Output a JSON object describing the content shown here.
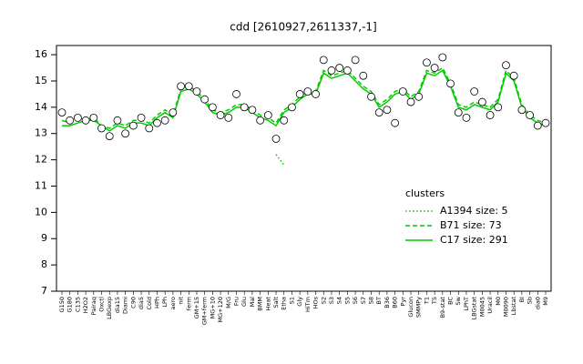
{
  "chart_data": {
    "type": "line",
    "title": "cdd [2610927,2611337,-1]",
    "categories": [
      "G150",
      "G180",
      "C135",
      "H2O2",
      "Pairaq",
      "Oxctl",
      "LBGexp",
      "dia15",
      "Diami",
      "C90",
      "dia5",
      "Cold",
      "HPh",
      "LPh",
      "aero",
      "nit",
      "ferm",
      "GM+15",
      "GM+ferm",
      "MG+10",
      "MG+120",
      "M/G",
      "Fru",
      "Glu",
      "Mal",
      "BMM",
      "Heat",
      "Salt",
      "Etha",
      "S1",
      "Gly",
      "HiTm",
      "HOs",
      "S2",
      "S3",
      "S4",
      "S5",
      "S6",
      "S7",
      "S8",
      "BT",
      "B36",
      "B60",
      "Pyr",
      "Glucon",
      "SMMPy",
      "T1",
      "T5",
      "B9-stat",
      "BC",
      "Sw",
      "LPhT",
      "LBGstat",
      "M0045",
      "Uracil",
      "M0",
      "M0090",
      "Lbstat",
      "BI",
      "Sb",
      "dia0",
      "M9"
    ],
    "points": {
      "color": "#000000",
      "values": [
        13.8,
        13.5,
        13.6,
        13.5,
        13.6,
        13.2,
        12.9,
        13.5,
        13.0,
        13.3,
        13.6,
        13.2,
        13.4,
        13.5,
        13.8,
        14.8,
        14.8,
        14.6,
        14.3,
        14.0,
        13.7,
        13.6,
        14.5,
        14.0,
        13.9,
        13.5,
        13.7,
        12.8,
        13.5,
        14.0,
        14.5,
        14.6,
        14.5,
        15.8,
        15.4,
        15.5,
        15.4,
        15.8,
        15.2,
        14.4,
        13.8,
        13.9,
        13.4,
        14.6,
        14.2,
        14.4,
        15.7,
        15.5,
        15.9,
        14.9,
        13.8,
        13.6,
        14.6,
        14.2,
        13.7,
        14.0,
        15.6,
        15.2,
        13.9,
        13.7,
        13.3,
        13.4
      ]
    },
    "series": [
      {
        "name": "A1394 size: 5",
        "color": "#00cc00",
        "style": "dotted",
        "values": [
          null,
          null,
          null,
          null,
          null,
          null,
          null,
          null,
          null,
          null,
          null,
          null,
          null,
          null,
          null,
          null,
          null,
          null,
          null,
          null,
          null,
          null,
          null,
          null,
          null,
          null,
          null,
          12.2,
          11.8,
          null,
          null,
          null,
          null,
          null,
          null,
          null,
          null,
          null,
          null,
          null,
          null,
          null,
          null,
          null,
          null,
          null,
          null,
          null,
          null,
          null,
          null,
          null,
          null,
          null,
          null,
          null,
          null,
          null,
          null,
          null,
          null,
          null
        ]
      },
      {
        "name": "B71 size: 73",
        "color": "#00cc00",
        "style": "dashed",
        "values": [
          13.5,
          13.4,
          13.6,
          13.5,
          13.6,
          13.3,
          13.2,
          13.4,
          13.3,
          13.5,
          13.5,
          13.4,
          13.7,
          13.9,
          13.7,
          14.7,
          14.8,
          14.6,
          14.3,
          13.9,
          13.8,
          13.9,
          14.1,
          14.1,
          13.9,
          13.7,
          13.6,
          13.4,
          13.9,
          14.1,
          14.4,
          14.6,
          14.6,
          15.4,
          15.2,
          15.3,
          15.4,
          15.1,
          14.8,
          14.6,
          14.1,
          14.3,
          14.6,
          14.7,
          14.4,
          14.6,
          15.4,
          15.3,
          15.5,
          14.9,
          14.1,
          14.0,
          14.2,
          14.1,
          14.0,
          14.3,
          15.4,
          15.1,
          14.1,
          13.7,
          13.5,
          13.4
        ]
      },
      {
        "name": "C17 size: 291",
        "color": "#00cc00",
        "style": "solid",
        "values": [
          13.3,
          13.3,
          13.4,
          13.5,
          13.5,
          13.3,
          13.1,
          13.3,
          13.2,
          13.4,
          13.4,
          13.3,
          13.6,
          13.8,
          13.6,
          14.6,
          14.7,
          14.5,
          14.2,
          13.8,
          13.7,
          13.8,
          14.0,
          14.0,
          13.8,
          13.6,
          13.5,
          13.3,
          13.8,
          14.0,
          14.3,
          14.5,
          14.5,
          15.3,
          15.1,
          15.2,
          15.3,
          15.0,
          14.7,
          14.5,
          14.0,
          14.2,
          14.5,
          14.6,
          14.3,
          14.5,
          15.3,
          15.2,
          15.4,
          14.8,
          14.0,
          13.9,
          14.1,
          14.0,
          13.9,
          14.2,
          15.3,
          15.0,
          14.0,
          13.6,
          13.4,
          13.3
        ]
      }
    ],
    "ylim": [
      7,
      16.35
    ],
    "yticks": [
      7,
      8,
      9,
      10,
      11,
      12,
      13,
      14,
      15,
      16
    ],
    "legend": {
      "title": "clusters",
      "position": "right"
    }
  }
}
